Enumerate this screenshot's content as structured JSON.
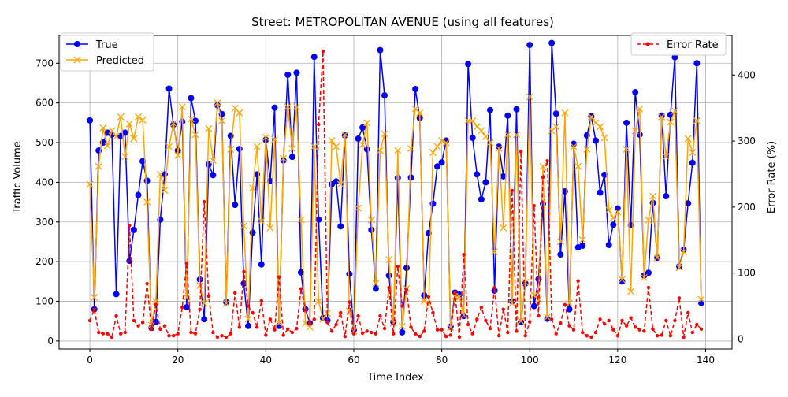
{
  "chart_data": {
    "type": "line",
    "title": "Street: METROPOLITAN AVENUE (using all features)",
    "xlabel": "Time Index",
    "ylabel": "Traffic Volume",
    "y2label": "Error Rate (%)",
    "xlim": [
      -7,
      146
    ],
    "ylim": [
      -20,
      770
    ],
    "y2lim": [
      -15,
      460
    ],
    "xticks": [
      0,
      20,
      40,
      60,
      80,
      100,
      120,
      140
    ],
    "yticks": [
      0,
      100,
      200,
      300,
      400,
      500,
      600,
      700
    ],
    "y2ticks": [
      0,
      100,
      200,
      300,
      400
    ],
    "grid": true,
    "legend_left_placement": "top-left",
    "legend_right_placement": "top-right",
    "colors": {
      "true": "#0000ff",
      "predicted": "#ffa500",
      "error": "#ff0000",
      "grid": "#b0b0b0"
    },
    "series": [
      {
        "name": "True",
        "axis": "left",
        "values": [
          556,
          80,
          480,
          500,
          525,
          520,
          118,
          517,
          525,
          202,
          280,
          368,
          453,
          404,
          33,
          48,
          306,
          420,
          636,
          545,
          480,
          553,
          85,
          612,
          555,
          155,
          55,
          445,
          418,
          594,
          572,
          98,
          517,
          343,
          484,
          145,
          38,
          273,
          420,
          193,
          507,
          403,
          588,
          38,
          455,
          671,
          464,
          676,
          173,
          80,
          45,
          716,
          306,
          58,
          52,
          395,
          402,
          289,
          518,
          169,
          28,
          510,
          538,
          483,
          280,
          132,
          733,
          619,
          165,
          48,
          411,
          22,
          184,
          412,
          635,
          562,
          115,
          272,
          346,
          440,
          450,
          505,
          36,
          122,
          117,
          63,
          698,
          512,
          420,
          357,
          400,
          582,
          127,
          490,
          415,
          568,
          100,
          584,
          48,
          145,
          746,
          88,
          156,
          346,
          56,
          751,
          573,
          218,
          377,
          80,
          497,
          236,
          240,
          518,
          566,
          505,
          374,
          419,
          242,
          293,
          334,
          150,
          550,
          292,
          627,
          520,
          165,
          172,
          348,
          210,
          568,
          365,
          570,
          715,
          188,
          230,
          347,
          449,
          700,
          96
        ]
      },
      {
        "name": "Predicted",
        "axis": "left",
        "values": [
          395,
          110,
          440,
          537,
          492,
          530,
          515,
          565,
          465,
          547,
          510,
          565,
          557,
          350,
          40,
          100,
          420,
          380,
          490,
          548,
          468,
          590,
          110,
          560,
          520,
          140,
          95,
          535,
          455,
          600,
          555,
          95,
          483,
          587,
          575,
          290,
          55,
          385,
          490,
          302,
          513,
          285,
          508,
          45,
          460,
          590,
          485,
          590,
          305,
          45,
          35,
          490,
          100,
          55,
          70,
          505,
          490,
          395,
          520,
          75,
          25,
          335,
          495,
          550,
          305,
          145,
          480,
          522,
          205,
          45,
          480,
          37,
          132,
          485,
          585,
          575,
          100,
          92,
          475,
          490,
          505,
          500,
          34,
          112,
          112,
          65,
          555,
          555,
          540,
          530,
          515,
          500,
          225,
          485,
          285,
          520,
          95,
          520,
          50,
          148,
          615,
          115,
          105,
          440,
          60,
          530,
          540,
          250,
          575,
          95,
          490,
          440,
          255,
          483,
          565,
          550,
          540,
          512,
          330,
          310,
          325,
          155,
          483,
          125,
          530,
          585,
          160,
          305,
          365,
          210,
          565,
          465,
          552,
          580,
          185,
          225,
          510,
          475,
          555,
          105
        ]
      },
      {
        "name": "Error Rate",
        "axis": "right",
        "values": [
          28,
          45,
          10,
          8,
          8,
          3,
          35,
          8,
          10,
          172,
          28,
          20,
          25,
          84,
          15,
          52,
          15,
          20,
          5,
          5,
          8,
          48,
          115,
          10,
          8,
          45,
          208,
          65,
          10,
          3,
          5,
          3,
          8,
          70,
          18,
          102,
          50,
          40,
          18,
          58,
          6,
          30,
          14,
          94,
          6,
          15,
          10,
          16,
          76,
          44,
          24,
          30,
          325,
          436,
          25,
          12,
          22,
          40,
          4,
          56,
          8,
          35,
          9,
          12,
          10,
          8,
          35,
          16,
          78,
          8,
          110,
          50,
          75,
          18,
          8,
          4,
          12,
          64,
          40,
          14,
          14,
          4,
          6,
          70,
          3,
          128,
          22,
          8,
          30,
          48,
          28,
          16,
          78,
          5,
          45,
          10,
          225,
          12,
          284,
          5,
          26,
          202,
          35,
          245,
          270,
          30,
          8,
          24,
          52,
          20,
          14,
          88,
          10,
          5,
          3,
          10,
          30,
          23,
          28,
          14,
          5,
          28,
          20,
          32,
          18,
          14,
          12,
          78,
          15,
          5,
          6,
          28,
          5,
          28,
          62,
          3,
          40,
          10,
          22,
          15
        ]
      }
    ]
  }
}
